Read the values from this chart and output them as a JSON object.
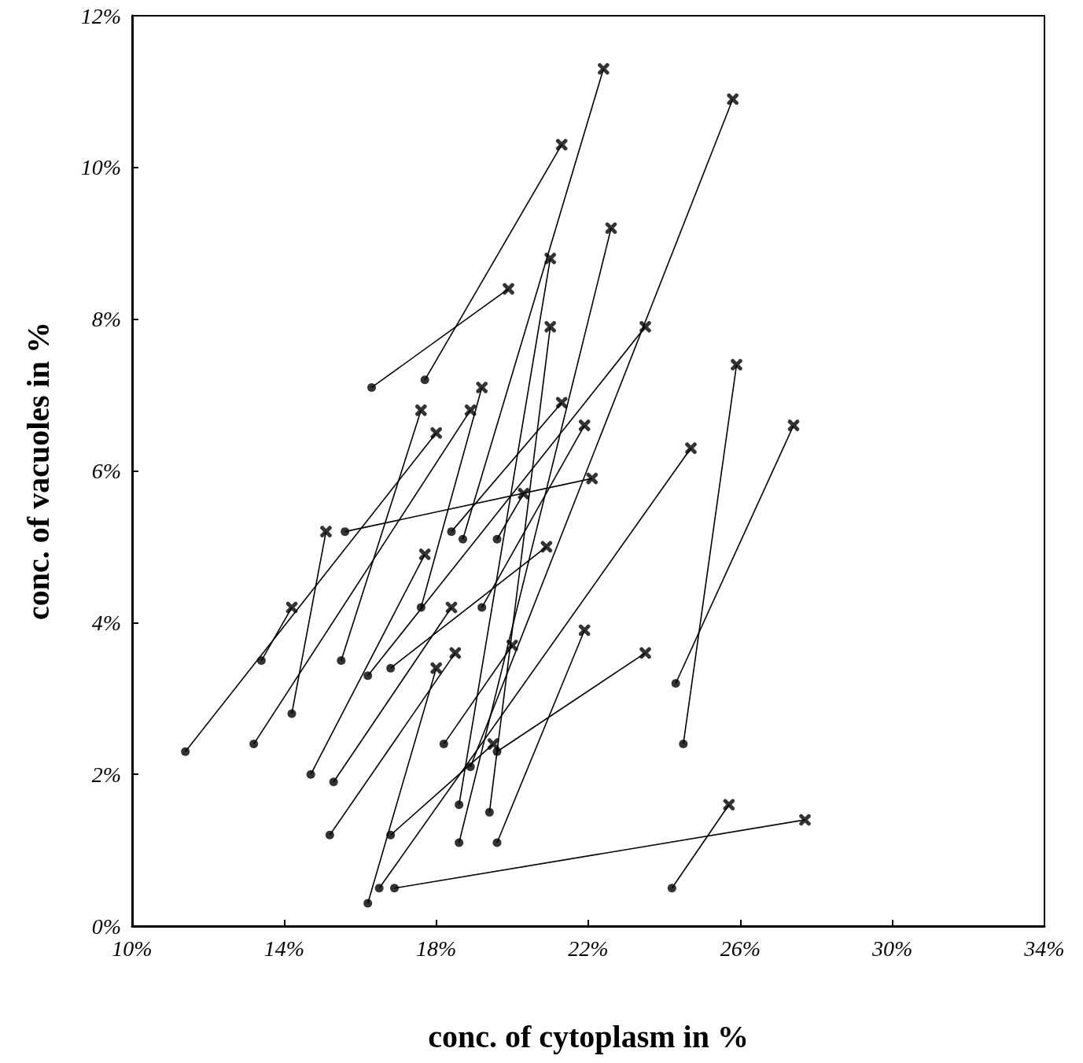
{
  "chart_data": {
    "type": "line",
    "xlabel": "conc. of cytoplasm in %",
    "ylabel": "conc. of vacuoles in %",
    "xlim": [
      10,
      34
    ],
    "ylim": [
      0,
      12
    ],
    "xticks": [
      {
        "value": 10,
        "label": "10%"
      },
      {
        "value": 14,
        "label": "14%"
      },
      {
        "value": 18,
        "label": "18%"
      },
      {
        "value": 22,
        "label": "22%"
      },
      {
        "value": 26,
        "label": "26%"
      },
      {
        "value": 30,
        "label": "30%"
      },
      {
        "value": 34,
        "label": "34%"
      }
    ],
    "yticks": [
      {
        "value": 0,
        "label": "0%"
      },
      {
        "value": 2,
        "label": "2%"
      },
      {
        "value": 4,
        "label": "4%"
      },
      {
        "value": 6,
        "label": "6%"
      },
      {
        "value": 8,
        "label": "8%"
      },
      {
        "value": 10,
        "label": "10%"
      },
      {
        "value": 12,
        "label": "12%"
      }
    ],
    "grid": false,
    "marker": "none",
    "line_style": "solid",
    "series": [
      {
        "color": "#000000",
        "x": [
          16.3,
          19.9
        ],
        "values": [
          7.1,
          8.4
        ]
      },
      {
        "color": "#000000",
        "x": [
          17.7,
          21.3
        ],
        "values": [
          7.2,
          10.3
        ]
      },
      {
        "color": "#000000",
        "x": [
          15.6,
          22.1
        ],
        "values": [
          5.2,
          5.9
        ]
      },
      {
        "color": "#000000",
        "x": [
          13.4,
          14.2
        ],
        "values": [
          3.5,
          4.2
        ]
      },
      {
        "color": "#000000",
        "x": [
          14.2,
          15.1
        ],
        "values": [
          2.8,
          5.2
        ]
      },
      {
        "color": "#000000",
        "x": [
          24.3,
          27.4
        ],
        "values": [
          3.2,
          6.6
        ]
      },
      {
        "color": "#000000",
        "x": [
          24.5,
          25.9
        ],
        "values": [
          2.4,
          7.4
        ]
      },
      {
        "color": "#000000",
        "x": [
          24.2,
          25.7
        ],
        "values": [
          0.5,
          1.6
        ]
      },
      {
        "color": "#000000",
        "x": [
          16.9,
          27.7
        ],
        "values": [
          0.5,
          1.4
        ]
      },
      {
        "color": "#000000",
        "x": [
          17.6,
          19.2
        ],
        "values": [
          4.2,
          7.1
        ]
      },
      {
        "color": "#000000",
        "x": [
          13.2,
          18.9
        ],
        "values": [
          2.4,
          6.8
        ]
      },
      {
        "color": "#000000",
        "x": [
          11.4,
          18.0
        ],
        "values": [
          2.3,
          6.5
        ]
      },
      {
        "color": "#000000",
        "x": [
          15.5,
          17.6
        ],
        "values": [
          3.5,
          6.8
        ]
      },
      {
        "color": "#000000",
        "x": [
          14.7,
          17.7
        ],
        "values": [
          2.0,
          4.9
        ]
      },
      {
        "color": "#000000",
        "x": [
          15.3,
          18.4
        ],
        "values": [
          1.9,
          4.2
        ]
      },
      {
        "color": "#000000",
        "x": [
          16.8,
          20.9
        ],
        "values": [
          3.4,
          5.0
        ]
      },
      {
        "color": "#000000",
        "x": [
          16.2,
          23.5
        ],
        "values": [
          3.3,
          7.9
        ]
      },
      {
        "color": "#000000",
        "x": [
          19.2,
          21.9
        ],
        "values": [
          4.2,
          6.6
        ]
      },
      {
        "color": "#000000",
        "x": [
          19.6,
          20.3
        ],
        "values": [
          5.1,
          5.7
        ]
      },
      {
        "color": "#000000",
        "x": [
          18.4,
          21.3
        ],
        "values": [
          5.2,
          6.9
        ]
      },
      {
        "color": "#000000",
        "x": [
          18.7,
          22.4
        ],
        "values": [
          5.1,
          11.3
        ]
      },
      {
        "color": "#000000",
        "x": [
          18.6,
          21.0
        ],
        "values": [
          1.6,
          8.8
        ]
      },
      {
        "color": "#000000",
        "x": [
          19.4,
          21.0
        ],
        "values": [
          1.5,
          7.9
        ]
      },
      {
        "color": "#000000",
        "x": [
          18.6,
          22.6
        ],
        "values": [
          1.1,
          9.2
        ]
      },
      {
        "color": "#000000",
        "x": [
          19.6,
          21.9
        ],
        "values": [
          1.1,
          3.9
        ]
      },
      {
        "color": "#000000",
        "x": [
          19.6,
          23.5
        ],
        "values": [
          2.3,
          3.6
        ]
      },
      {
        "color": "#000000",
        "x": [
          18.2,
          20.0
        ],
        "values": [
          2.4,
          3.7
        ]
      },
      {
        "color": "#000000",
        "x": [
          16.2,
          18.0
        ],
        "values": [
          0.3,
          3.4
        ]
      },
      {
        "color": "#000000",
        "x": [
          18.9,
          25.8
        ],
        "values": [
          2.1,
          10.9
        ]
      },
      {
        "color": "#000000",
        "x": [
          16.5,
          24.7
        ],
        "values": [
          0.5,
          6.3
        ]
      },
      {
        "color": "#000000",
        "x": [
          15.2,
          18.5
        ],
        "values": [
          1.2,
          3.6
        ]
      },
      {
        "color": "#000000",
        "x": [
          16.8,
          19.5
        ],
        "values": [
          1.2,
          2.4
        ]
      },
      {
        "type": "scatter",
        "marker": "circle",
        "color": "#000000",
        "x": [
          16.3,
          17.7,
          15.6,
          13.4,
          14.2,
          24.3,
          24.5,
          24.2,
          16.9,
          17.6,
          13.2,
          11.4,
          15.5,
          14.7,
          15.3,
          16.8,
          16.2,
          19.2,
          19.6,
          18.4,
          18.7,
          18.6,
          19.4,
          18.6,
          19.6,
          19.6,
          18.2,
          16.2,
          18.9,
          16.5,
          15.2,
          16.8
        ],
        "values": [
          7.1,
          7.2,
          5.2,
          3.5,
          2.8,
          3.2,
          2.4,
          0.5,
          0.5,
          4.2,
          2.4,
          2.3,
          3.5,
          2.0,
          1.9,
          3.4,
          3.3,
          4.2,
          5.1,
          5.2,
          5.1,
          1.6,
          1.5,
          1.1,
          1.1,
          2.3,
          2.4,
          0.3,
          2.1,
          0.5,
          1.2,
          1.2
        ]
      },
      {
        "type": "scatter",
        "marker": "cross",
        "color": "#000000",
        "x": [
          19.9,
          21.3,
          22.1,
          14.2,
          15.1,
          27.4,
          25.9,
          25.7,
          27.7,
          19.2,
          18.9,
          18.0,
          17.6,
          17.7,
          18.4,
          20.9,
          23.5,
          21.9,
          20.3,
          21.3,
          22.4,
          21.0,
          21.0,
          22.6,
          21.9,
          23.5,
          20.0,
          18.0,
          25.8,
          24.7,
          18.5,
          19.5
        ],
        "values": [
          8.4,
          10.3,
          5.9,
          4.2,
          5.2,
          6.6,
          7.4,
          1.6,
          1.4,
          7.1,
          6.8,
          6.5,
          6.8,
          4.9,
          4.2,
          5.0,
          7.9,
          6.6,
          5.7,
          6.9,
          11.3,
          8.8,
          7.9,
          9.2,
          3.9,
          3.6,
          3.7,
          3.4,
          10.9,
          6.3,
          3.6,
          2.4
        ]
      }
    ]
  }
}
